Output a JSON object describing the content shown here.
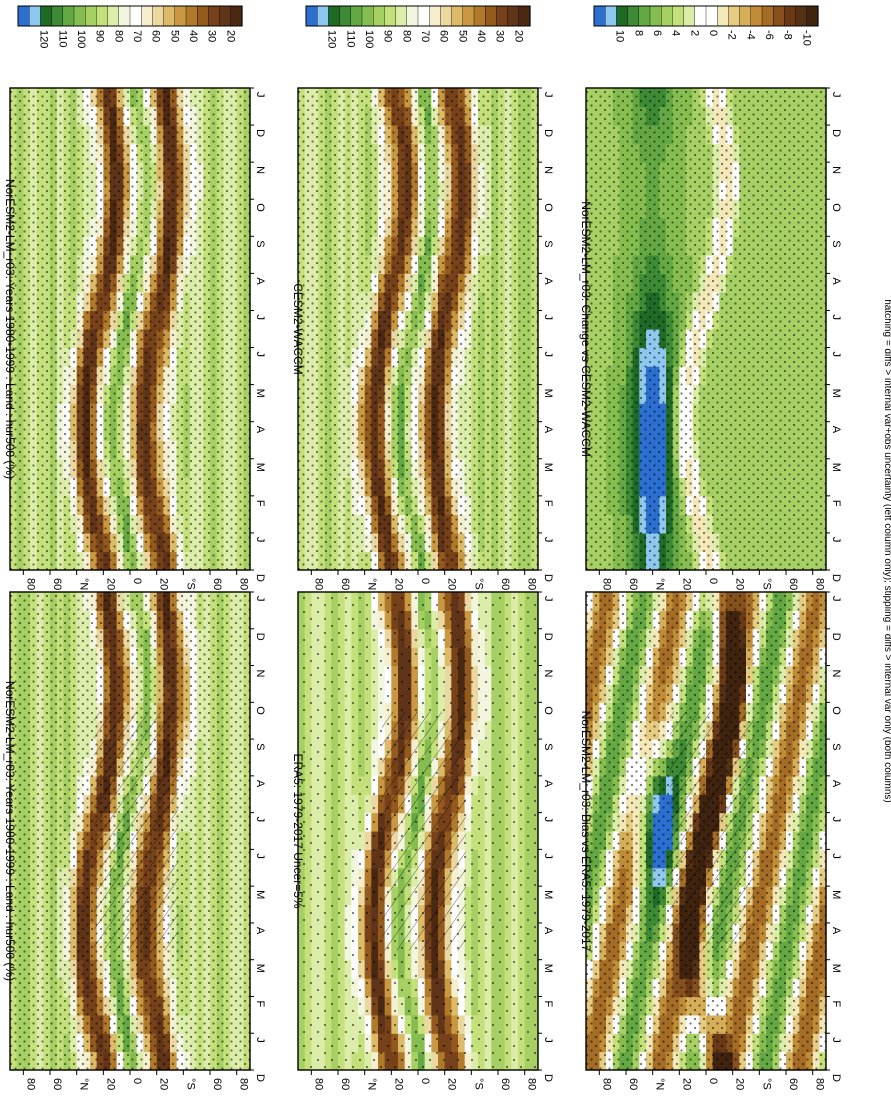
{
  "footnote": "hatching = diffs > internal var+obs uncertainty (left column only); stippling = diffs > internal var only (both columns)",
  "month_ticks": [
    "J",
    "F",
    "M",
    "A",
    "M",
    "J",
    "J",
    "A",
    "S",
    "O",
    "N",
    "D",
    "J"
  ],
  "month_start_label": "D",
  "lat_ticks": [
    "80",
    "60",
    "°N",
    "20",
    "0",
    "20",
    "°S",
    "60",
    "80"
  ],
  "palettes": {
    "absolute": [
      "#2b6fd0",
      "#8fc8ef",
      "#1e6a26",
      "#3e8b35",
      "#64a843",
      "#86bd4f",
      "#a6d064",
      "#c4e07a",
      "#dcedaa",
      "#f2f6df",
      "#ffffff",
      "#f6efcf",
      "#ead8a0",
      "#dcba68",
      "#c99840",
      "#b07a2a",
      "#93591d",
      "#77421a",
      "#5f3418",
      "#4a2812"
    ],
    "difference": [
      "#2b6fd0",
      "#8fc8ef",
      "#1e6a26",
      "#3e8b35",
      "#64a843",
      "#86bd4f",
      "#a6d064",
      "#c4e07a",
      "#dcedaa",
      "#ffffff",
      "#ffffff",
      "#f4e8b8",
      "#e6cc82",
      "#d6ae58",
      "#c08c36",
      "#a46c24",
      "#86501c",
      "#6a3a17",
      "#543014",
      "#402410"
    ]
  },
  "panels": [
    {
      "title": "NorESM2-LM_r03: Years 1980-1999 : Land : hur500 (%)",
      "palette": "absolute",
      "colorbar_ticks": [
        "120",
        "110",
        "100",
        "90",
        "80",
        "70",
        "60",
        "50",
        "40",
        "30",
        "20"
      ],
      "hatch": true,
      "stipple": "full"
    },
    {
      "title": "NorESM2-LM_r03: Years 1980-1999 : Land : hur500 (%)",
      "palette": "absolute",
      "colorbar_ticks": [
        "120",
        "110",
        "100",
        "90",
        "80",
        "70",
        "60",
        "50",
        "40",
        "30",
        "20"
      ],
      "hatch": false,
      "stipple": "full"
    },
    {
      "title": "ERA5: 1979-2017 Uncer=5%",
      "palette": "absolute",
      "colorbar_ticks": [
        "120",
        "110",
        "100",
        "90",
        "80",
        "70",
        "60",
        "50",
        "40",
        "30",
        "20"
      ],
      "hatch": true,
      "stipple": "sparse"
    },
    {
      "title": "CESM2-WACCM",
      "palette": "absolute",
      "colorbar_ticks": [
        "120",
        "110",
        "100",
        "90",
        "80",
        "70",
        "60",
        "50",
        "40",
        "30",
        "20"
      ],
      "hatch": false,
      "stipple": "full"
    },
    {
      "title": "NorESM2-LM_r03: Bias vs ERA5: 1979-2017",
      "palette": "difference",
      "colorbar_ticks": [
        "10",
        "8",
        "6",
        "4",
        "2",
        "0",
        "-2",
        "-4",
        "-6",
        "-8",
        "-10"
      ],
      "hatch": true,
      "stipple": "full"
    },
    {
      "title": "NorESM2-LM_r03: Change vs CESM2-WACCM",
      "palette": "difference",
      "colorbar_ticks": [
        "10",
        "8",
        "6",
        "4",
        "2",
        "0",
        "-2",
        "-4",
        "-6",
        "-8",
        "-10"
      ],
      "hatch": false,
      "stipple": "full"
    }
  ],
  "chart_data": {
    "type": "heatmap",
    "variable": "hur500 (%)",
    "x_axis": "latitude",
    "y_axis": "month",
    "note": "Six panels of zonal-mean relative humidity at 500 hPa over land by latitude and month; values are approximate readings of contour fields (absolute 20-120 %, differences -10 to 10 %)."
  }
}
